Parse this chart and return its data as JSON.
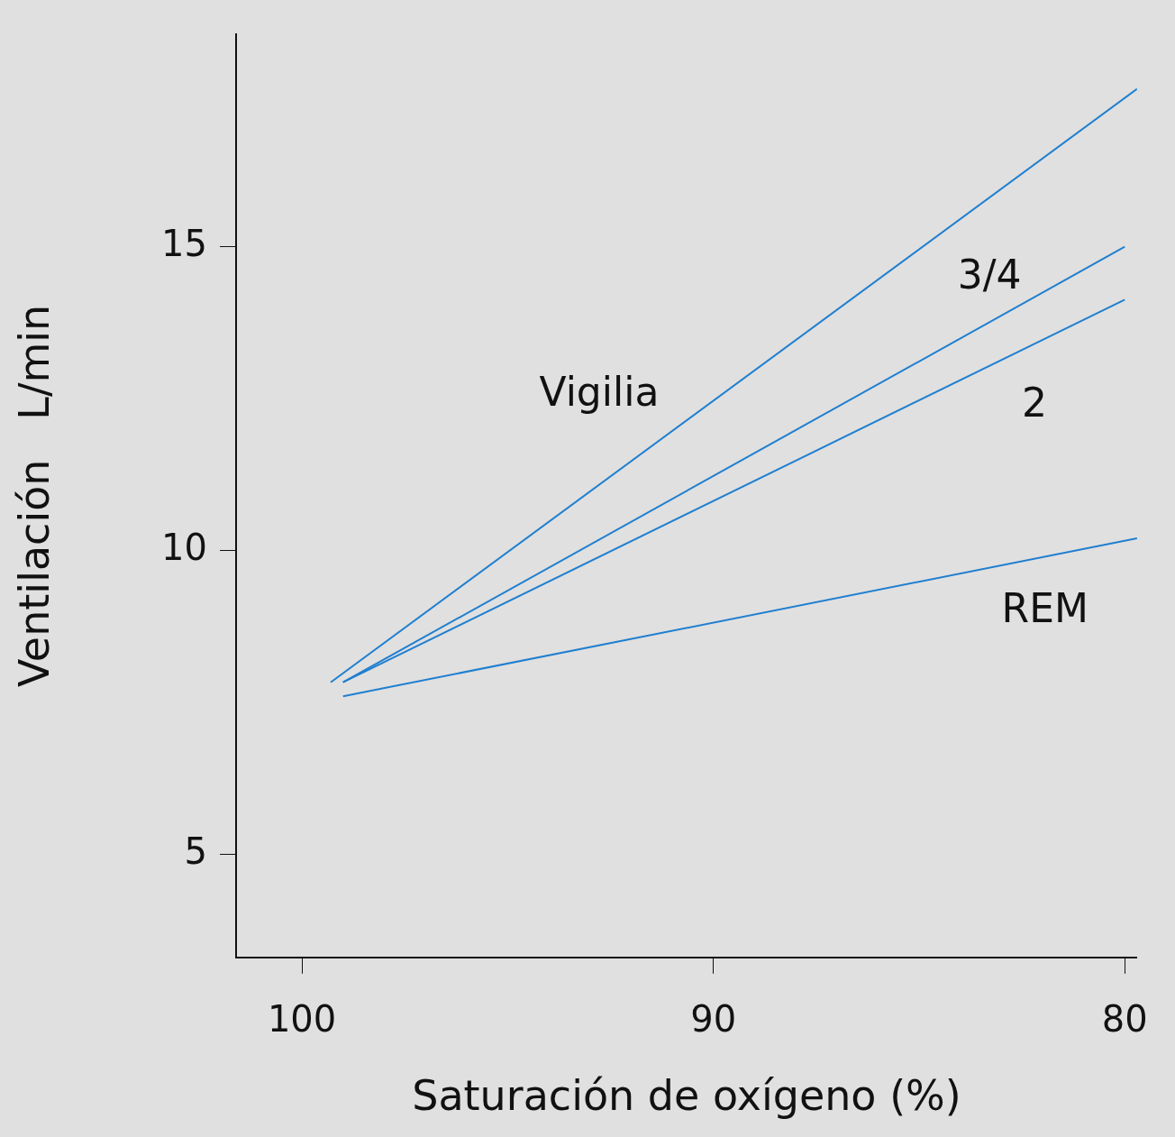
{
  "chart_data": {
    "type": "line",
    "xlabel": "Saturación de oxígeno (%)",
    "ylabel": "Ventilación   L/min",
    "xlim": [
      101.6,
      79.7
    ],
    "xticks": [
      100,
      90,
      80
    ],
    "ylim": [
      3.3,
      18.5
    ],
    "yticks": [
      5,
      10,
      15
    ],
    "grid": false,
    "legend": false,
    "marker": "none",
    "series": [
      {
        "name": "Vigilia",
        "color": "#1f7fd0",
        "x": [
          99.3,
          79.7
        ],
        "values": [
          7.83,
          17.6
        ]
      },
      {
        "name": "3/4",
        "color": "#1f7fd0",
        "x": [
          99.0,
          80
        ],
        "values": [
          7.83,
          15
        ]
      },
      {
        "name": "2",
        "color": "#1f7fd0",
        "x": [
          99.0,
          80
        ],
        "values": [
          7.83,
          14.13
        ]
      },
      {
        "name": "REM",
        "color": "#1f7fd0",
        "x": [
          99.0,
          79.7
        ],
        "values": [
          7.6,
          10.2
        ]
      }
    ]
  }
}
